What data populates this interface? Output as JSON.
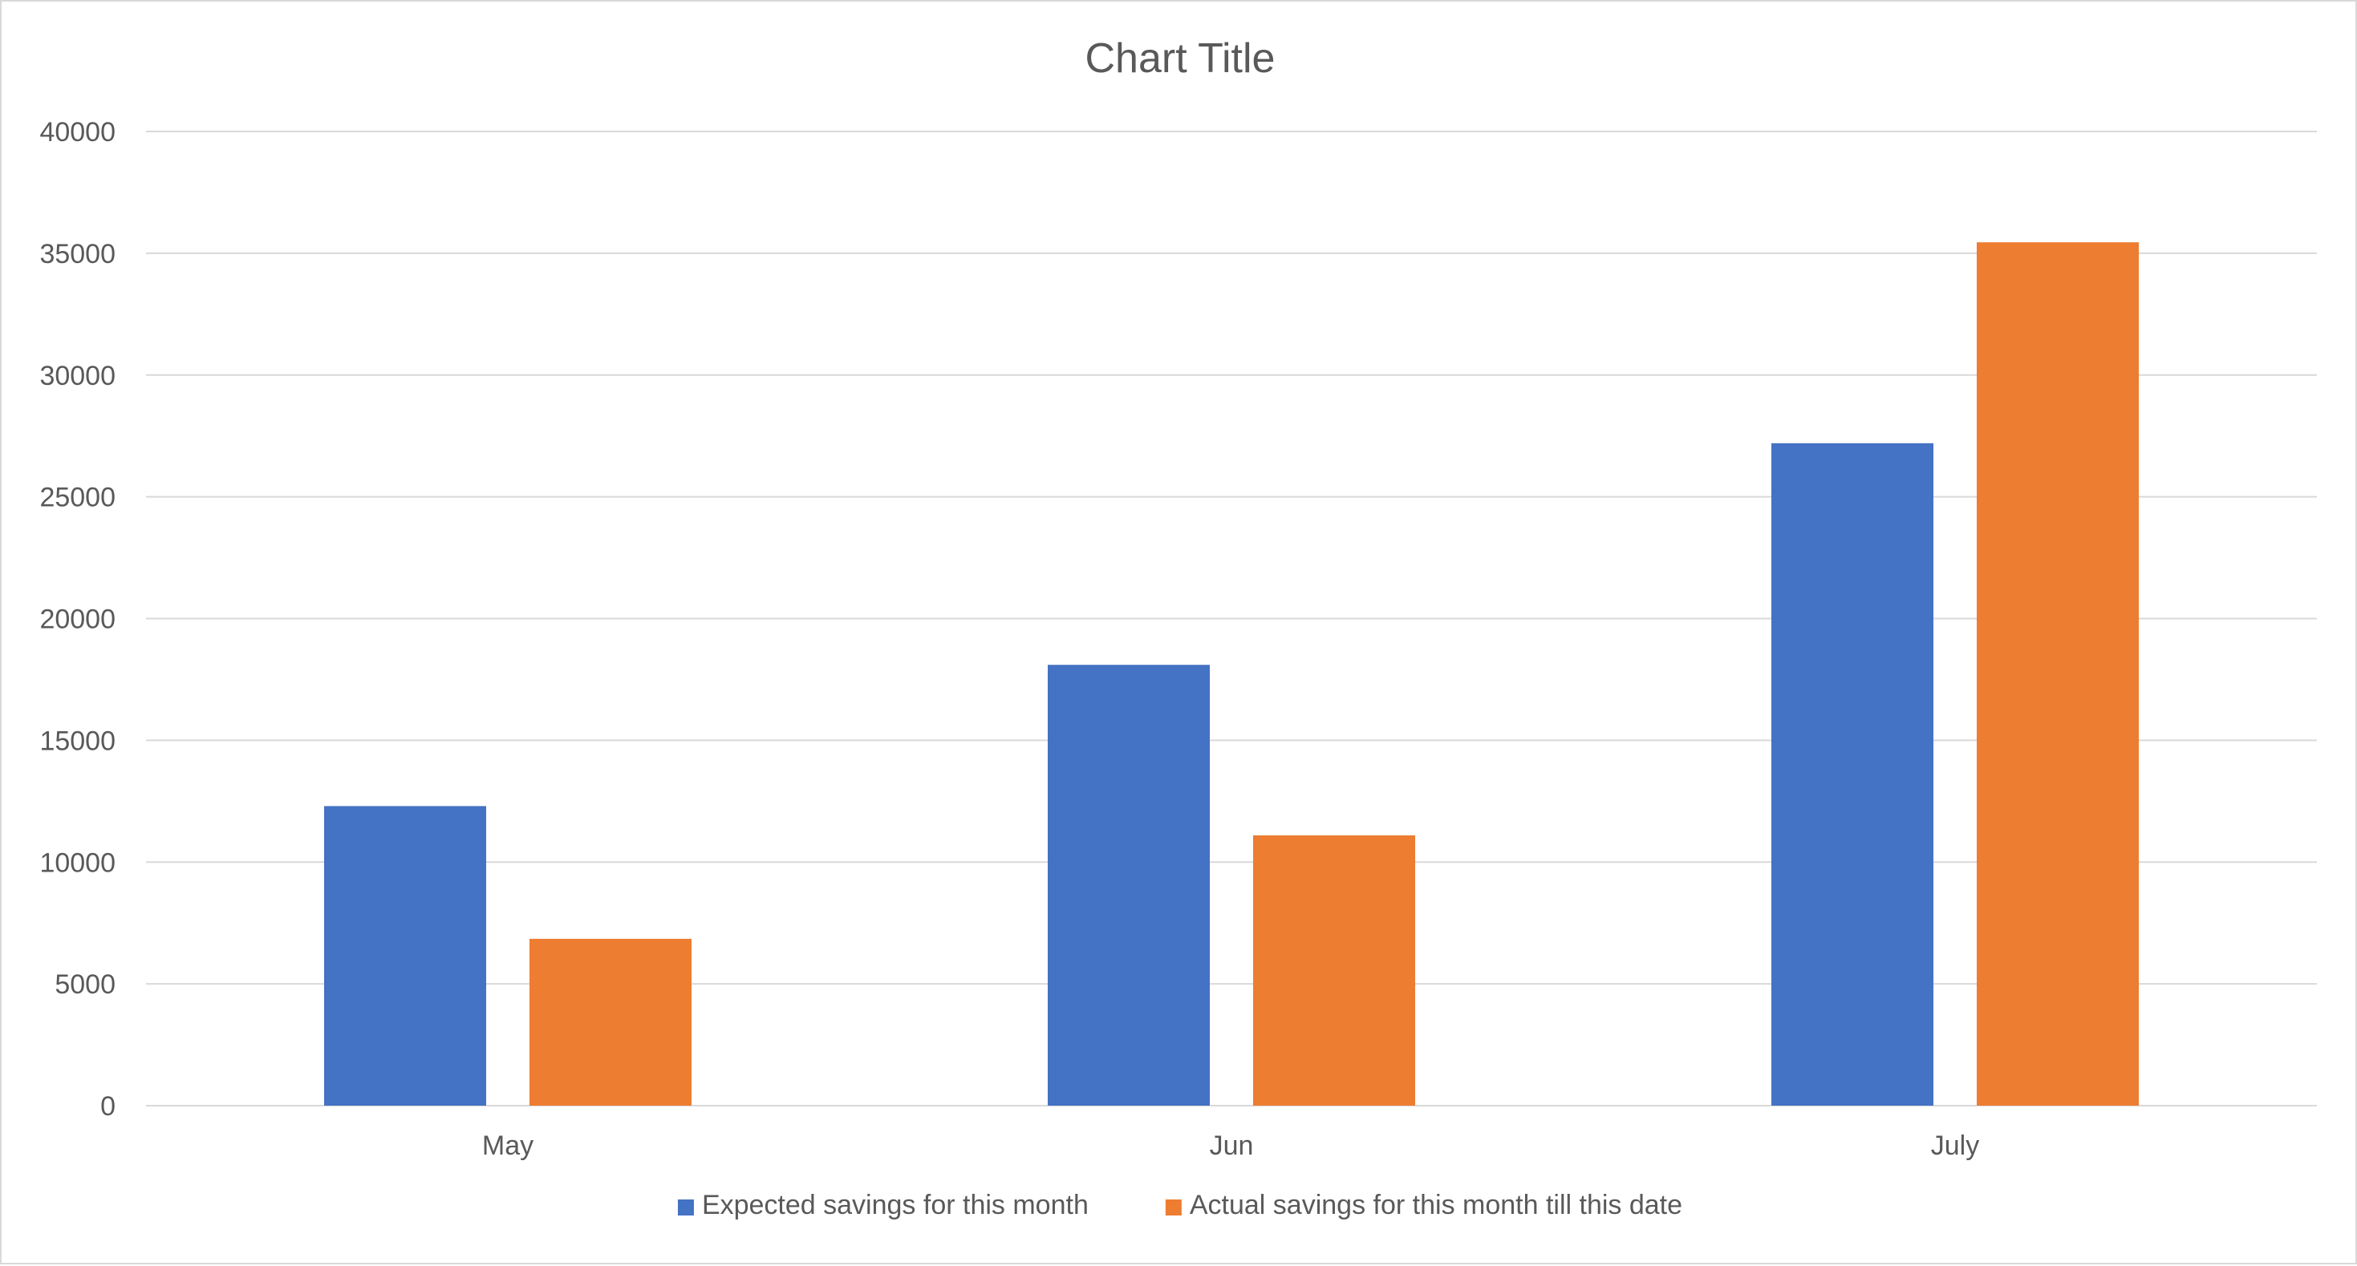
{
  "chart_data": {
    "type": "bar",
    "title": "Chart Title",
    "xlabel": "",
    "ylabel": "",
    "categories": [
      "May",
      "Jun",
      "July"
    ],
    "series": [
      {
        "name": "Expected savings for this month",
        "color": "#4472c4",
        "values": [
          12300,
          18100,
          27200
        ]
      },
      {
        "name": "Actual savings for this month till this date",
        "color": "#ed7d31",
        "values": [
          6850,
          11100,
          35450
        ]
      }
    ],
    "ylim": [
      0,
      40000
    ],
    "yticks": [
      "0",
      "5000",
      "10000",
      "15000",
      "20000",
      "25000",
      "30000",
      "35000",
      "40000"
    ],
    "grid": true,
    "legend_position": "bottom",
    "gridline_color": "#d9d9d9",
    "text_color": "#595959"
  }
}
